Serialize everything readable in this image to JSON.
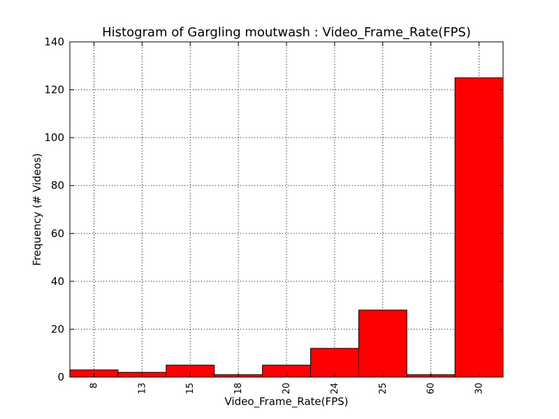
{
  "chart_data": {
    "type": "bar",
    "title": "Histogram of Gargling moutwash : Video_Frame_Rate(FPS)",
    "xlabel": "Video_Frame_Rate(FPS)",
    "ylabel": "Frequency (# Videos)",
    "categories": [
      "8",
      "13",
      "15",
      "18",
      "20",
      "24",
      "25",
      "60",
      "30"
    ],
    "values": [
      3,
      2,
      5,
      1,
      5,
      12,
      28,
      1,
      125
    ],
    "ylim": [
      0,
      140
    ],
    "yticks": [
      0,
      20,
      40,
      60,
      80,
      100,
      120,
      140
    ],
    "grid": true,
    "bar_color": "#ff0000",
    "edge_color": "#000000"
  }
}
